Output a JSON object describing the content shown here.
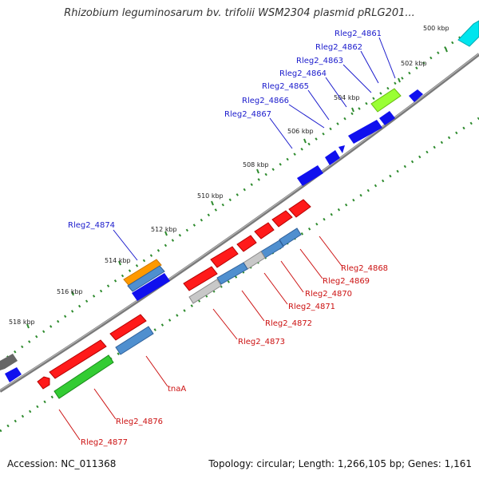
{
  "title": "Rhizobium leguminosarum bv. trifolii WSM2304 plasmid pRLG201...",
  "footer": {
    "accession": "Accession: NC_011368",
    "stats": "Topology: circular; Length: 1,266,105 bp; Genes: 1,161"
  },
  "colors": {
    "backbone": "#808080",
    "tick": "#2e8b2e",
    "forward_label": "#1a1acc",
    "reverse_label": "#cc1111"
  },
  "kbp_ticks": [
    "500 kbp",
    "502 kbp",
    "504 kbp",
    "506 kbp",
    "508 kbp",
    "510 kbp",
    "512 kbp",
    "514 kbp",
    "516 kbp",
    "518 kbp"
  ],
  "forward_genes": [
    "Rleg2_4861",
    "Rleg2_4862",
    "Rleg2_4863",
    "Rleg2_4864",
    "Rleg2_4865",
    "Rleg2_4866",
    "Rleg2_4867",
    "Rleg2_4874"
  ],
  "reverse_genes": [
    "Rleg2_4868",
    "Rleg2_4869",
    "Rleg2_4870",
    "Rleg2_4871",
    "Rleg2_4872",
    "Rleg2_4873",
    "tnaA",
    "Rleg2_4876",
    "Rleg2_4877"
  ]
}
